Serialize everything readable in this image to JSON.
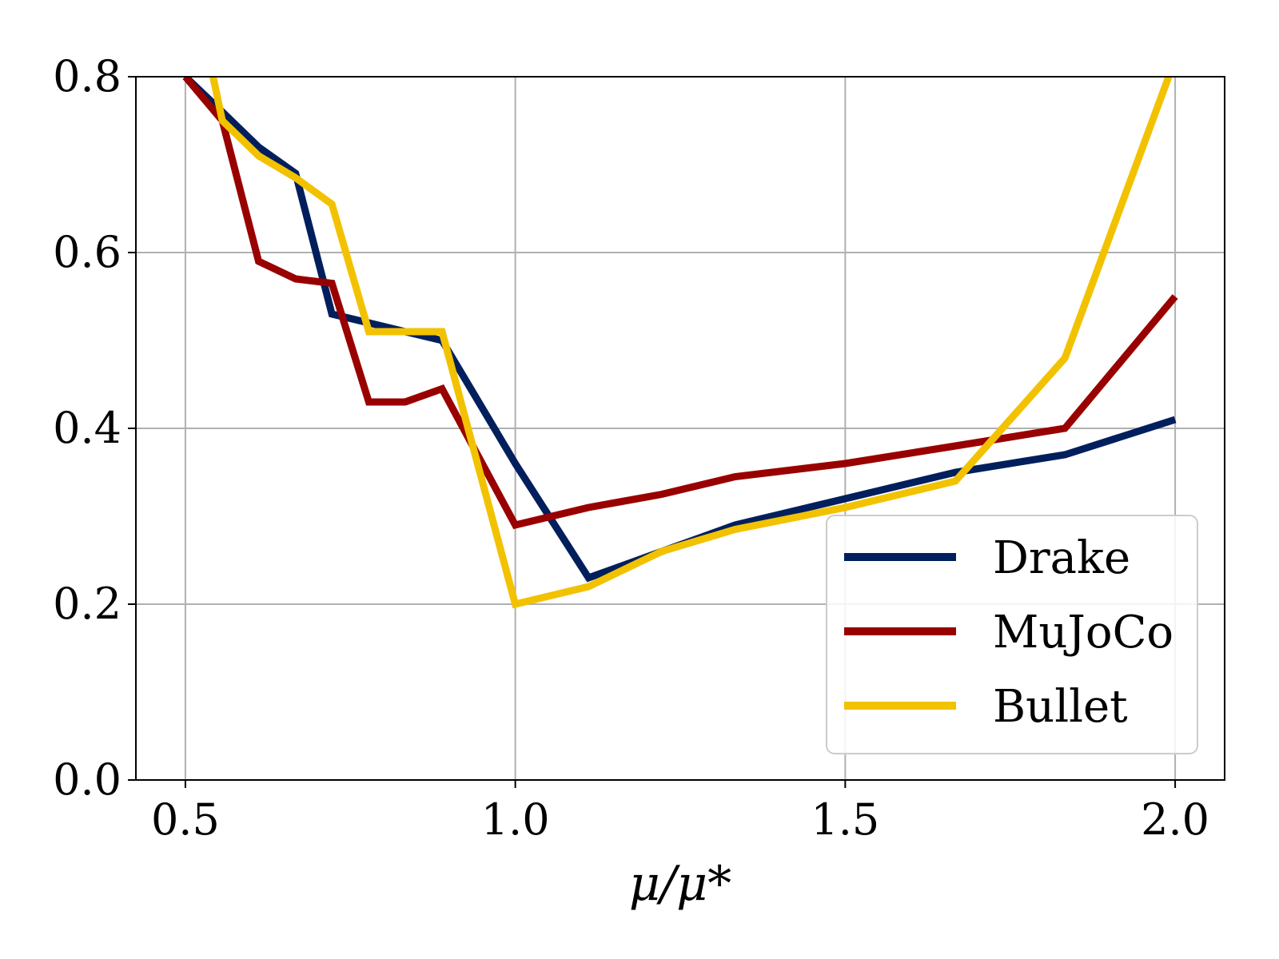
{
  "chart_data": {
    "type": "line",
    "title": "",
    "xlabel": "μ/μ*",
    "ylabel": "",
    "xlim": [
      0.425,
      2.075
    ],
    "ylim": [
      0.0,
      0.8
    ],
    "xticks": [
      0.5,
      1.0,
      1.5,
      2.0
    ],
    "xtick_labels": [
      "0.5",
      "1.0",
      "1.5",
      "2.0"
    ],
    "yticks": [
      0.0,
      0.2,
      0.4,
      0.6,
      0.8
    ],
    "ytick_labels": [
      "0.0",
      "0.2",
      "0.4",
      "0.6",
      "0.8"
    ],
    "grid": true,
    "legend_position": "lower-right",
    "series": [
      {
        "name": "Drake",
        "color": "#001f5c",
        "x": [
          0.5,
          0.556,
          0.611,
          0.667,
          0.722,
          0.778,
          0.833,
          0.889,
          1.0,
          1.111,
          1.222,
          1.333,
          1.5,
          1.667,
          1.833,
          2.0
        ],
        "y": [
          0.8,
          0.76,
          0.72,
          0.69,
          0.53,
          0.52,
          0.51,
          0.5,
          0.36,
          0.23,
          0.26,
          0.29,
          0.32,
          0.35,
          0.37,
          0.41
        ]
      },
      {
        "name": "MuJoCo",
        "color": "#990000",
        "x": [
          0.5,
          0.556,
          0.611,
          0.667,
          0.722,
          0.778,
          0.833,
          0.889,
          1.0,
          1.111,
          1.222,
          1.333,
          1.5,
          1.667,
          1.833,
          2.0
        ],
        "y": [
          0.8,
          0.75,
          0.59,
          0.57,
          0.565,
          0.43,
          0.43,
          0.445,
          0.29,
          0.31,
          0.325,
          0.345,
          0.36,
          0.38,
          0.4,
          0.55
        ]
      },
      {
        "name": "Bullet",
        "color": "#f2c200",
        "x": [
          0.5,
          0.556,
          0.611,
          0.667,
          0.722,
          0.778,
          0.833,
          0.889,
          1.0,
          1.111,
          1.222,
          1.333,
          1.5,
          1.667,
          1.833,
          2.0
        ],
        "y": [
          0.95,
          0.75,
          0.71,
          0.685,
          0.655,
          0.51,
          0.51,
          0.51,
          0.2,
          0.22,
          0.26,
          0.285,
          0.31,
          0.34,
          0.48,
          0.82
        ]
      }
    ]
  }
}
